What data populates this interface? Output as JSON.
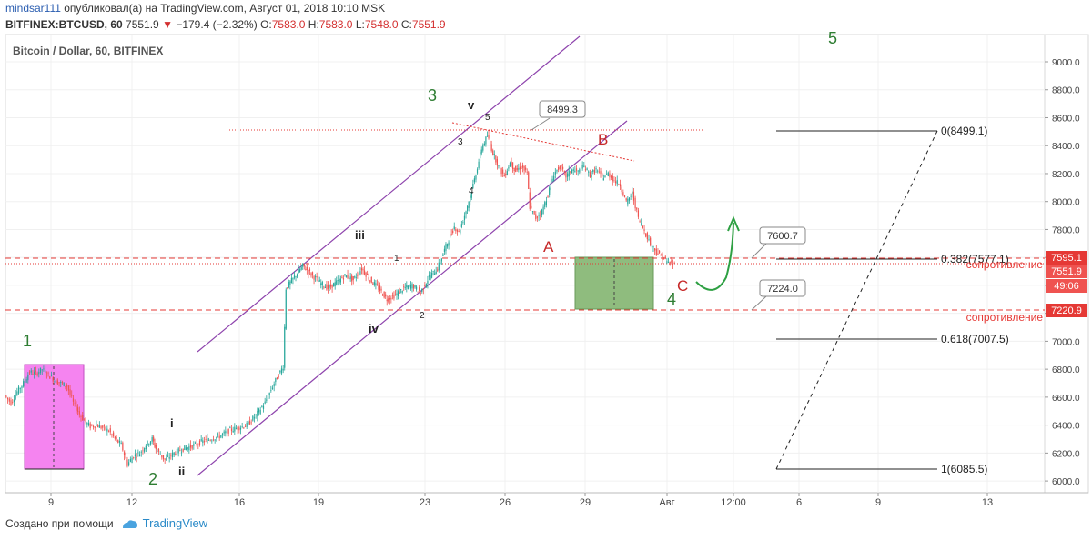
{
  "header": {
    "line1_user": "mindsar111",
    "line1_rest": " опубликовал(а) на TradingView.com, Август 01, 2018 10:10 MSK",
    "symbol": "BITFINEX:BTCUSD, 60",
    "last": "7551.9",
    "change": "−179.4 (−2.32%)",
    "o_label": "O:",
    "o": "7583.0",
    "h_label": "H:",
    "h": "7583.0",
    "l_label": "L:",
    "l": "7548.0",
    "c_label": "C:",
    "c": "7551.9"
  },
  "footer": {
    "made_with": "Создано при помощи",
    "brand": "TradingView"
  },
  "chart_data": {
    "type": "candlestick",
    "title": "Bitcoin / Dollar, 60, BITFINEX",
    "x_ticks": [
      "9",
      "12",
      "16",
      "19",
      "23",
      "26",
      "29",
      "Авг",
      "12:00",
      "6",
      "9",
      "13"
    ],
    "y_ticks": [
      6000,
      6200,
      6400,
      6600,
      6800,
      7000,
      7200,
      7400,
      7600,
      7800,
      8000,
      8200,
      8400,
      8600,
      8800,
      9000
    ],
    "y_tick_labels": [
      "6000.0",
      "6200.0",
      "6400.0",
      "6600.0",
      "6800.0",
      "7000.0",
      "7200.0",
      "7400.0",
      "7600.0",
      "7800.0",
      "8000.0",
      "8200.0",
      "8400.0",
      "8600.0",
      "8800.0",
      "9000.0"
    ],
    "ylim": [
      5920,
      9150
    ],
    "price_path": [
      [
        6610,
        6560,
        6640,
        6700,
        6780,
        6770,
        6800,
        6760,
        6720,
        6700,
        6680,
        6560,
        6480,
        6420
      ],
      [
        6390,
        6400,
        6380,
        6360,
        6300,
        6260,
        6120,
        6180,
        6200,
        6260,
        6300
      ],
      [
        6230,
        6150,
        6200,
        6230,
        6250,
        6280,
        6300,
        6320,
        6360,
        6380,
        6400,
        6470,
        6560,
        6700,
        6820
      ],
      [
        7380,
        7460,
        7540,
        7480,
        7420,
        7380,
        7420,
        7470,
        7440,
        7520,
        7440,
        7380,
        7300,
        7330,
        7380,
        7400,
        7350,
        7460,
        7520,
        7680,
        7820
      ],
      [
        7780,
        7900,
        8040,
        8200,
        8380,
        8470,
        8350,
        8250,
        8180,
        8280,
        8220,
        8250,
        8200
      ],
      [
        7960,
        7880,
        7930,
        8050,
        8200,
        8250,
        8180,
        8230,
        8210,
        8250,
        8190,
        8230,
        8170,
        8200,
        8150,
        8120,
        7990,
        8060,
        7880,
        7790,
        7700,
        7640,
        7600,
        7560,
        7552
      ]
    ],
    "last_price": "7551.9",
    "countdown": "49:06",
    "price_badges": [
      "7595.1",
      "7551.9",
      "7220.9"
    ],
    "fibonacci": [
      {
        "label": "0(8499.1)",
        "value": 8499.1
      },
      {
        "label": "0.382(7577.1)",
        "value": 7577.1
      },
      {
        "label": "0.618(7007.5)",
        "value": 7007.5
      },
      {
        "label": "1(6085.5)",
        "value": 6085.5
      }
    ],
    "resistance_levels": [
      7595.1,
      7220.9
    ],
    "resistance_label": "сопротивление",
    "resistance_label_2": "сопротивление",
    "callouts": [
      "8499.3",
      "7600.7",
      "7224.0"
    ],
    "wave_labels": {
      "w1": "1",
      "w2": "2",
      "w3": "3",
      "w4": "4",
      "w5": "5",
      "i": "i",
      "ii": "ii",
      "iii": "iii",
      "iv": "iv",
      "v": "v",
      "s1": "1",
      "s2": "2",
      "s3": "3",
      "s4": "4",
      "s5": "5",
      "A": "A",
      "B": "B",
      "C": "C"
    },
    "colors": {
      "up": "#26a69a",
      "down": "#ef5350",
      "channel": "#8e44ad",
      "resistance": "#e53935",
      "wave_green": "#2e7d32",
      "wave_red": "#c62828",
      "box_pink": "#f584f0",
      "box_green": "#8fbc7e"
    }
  }
}
